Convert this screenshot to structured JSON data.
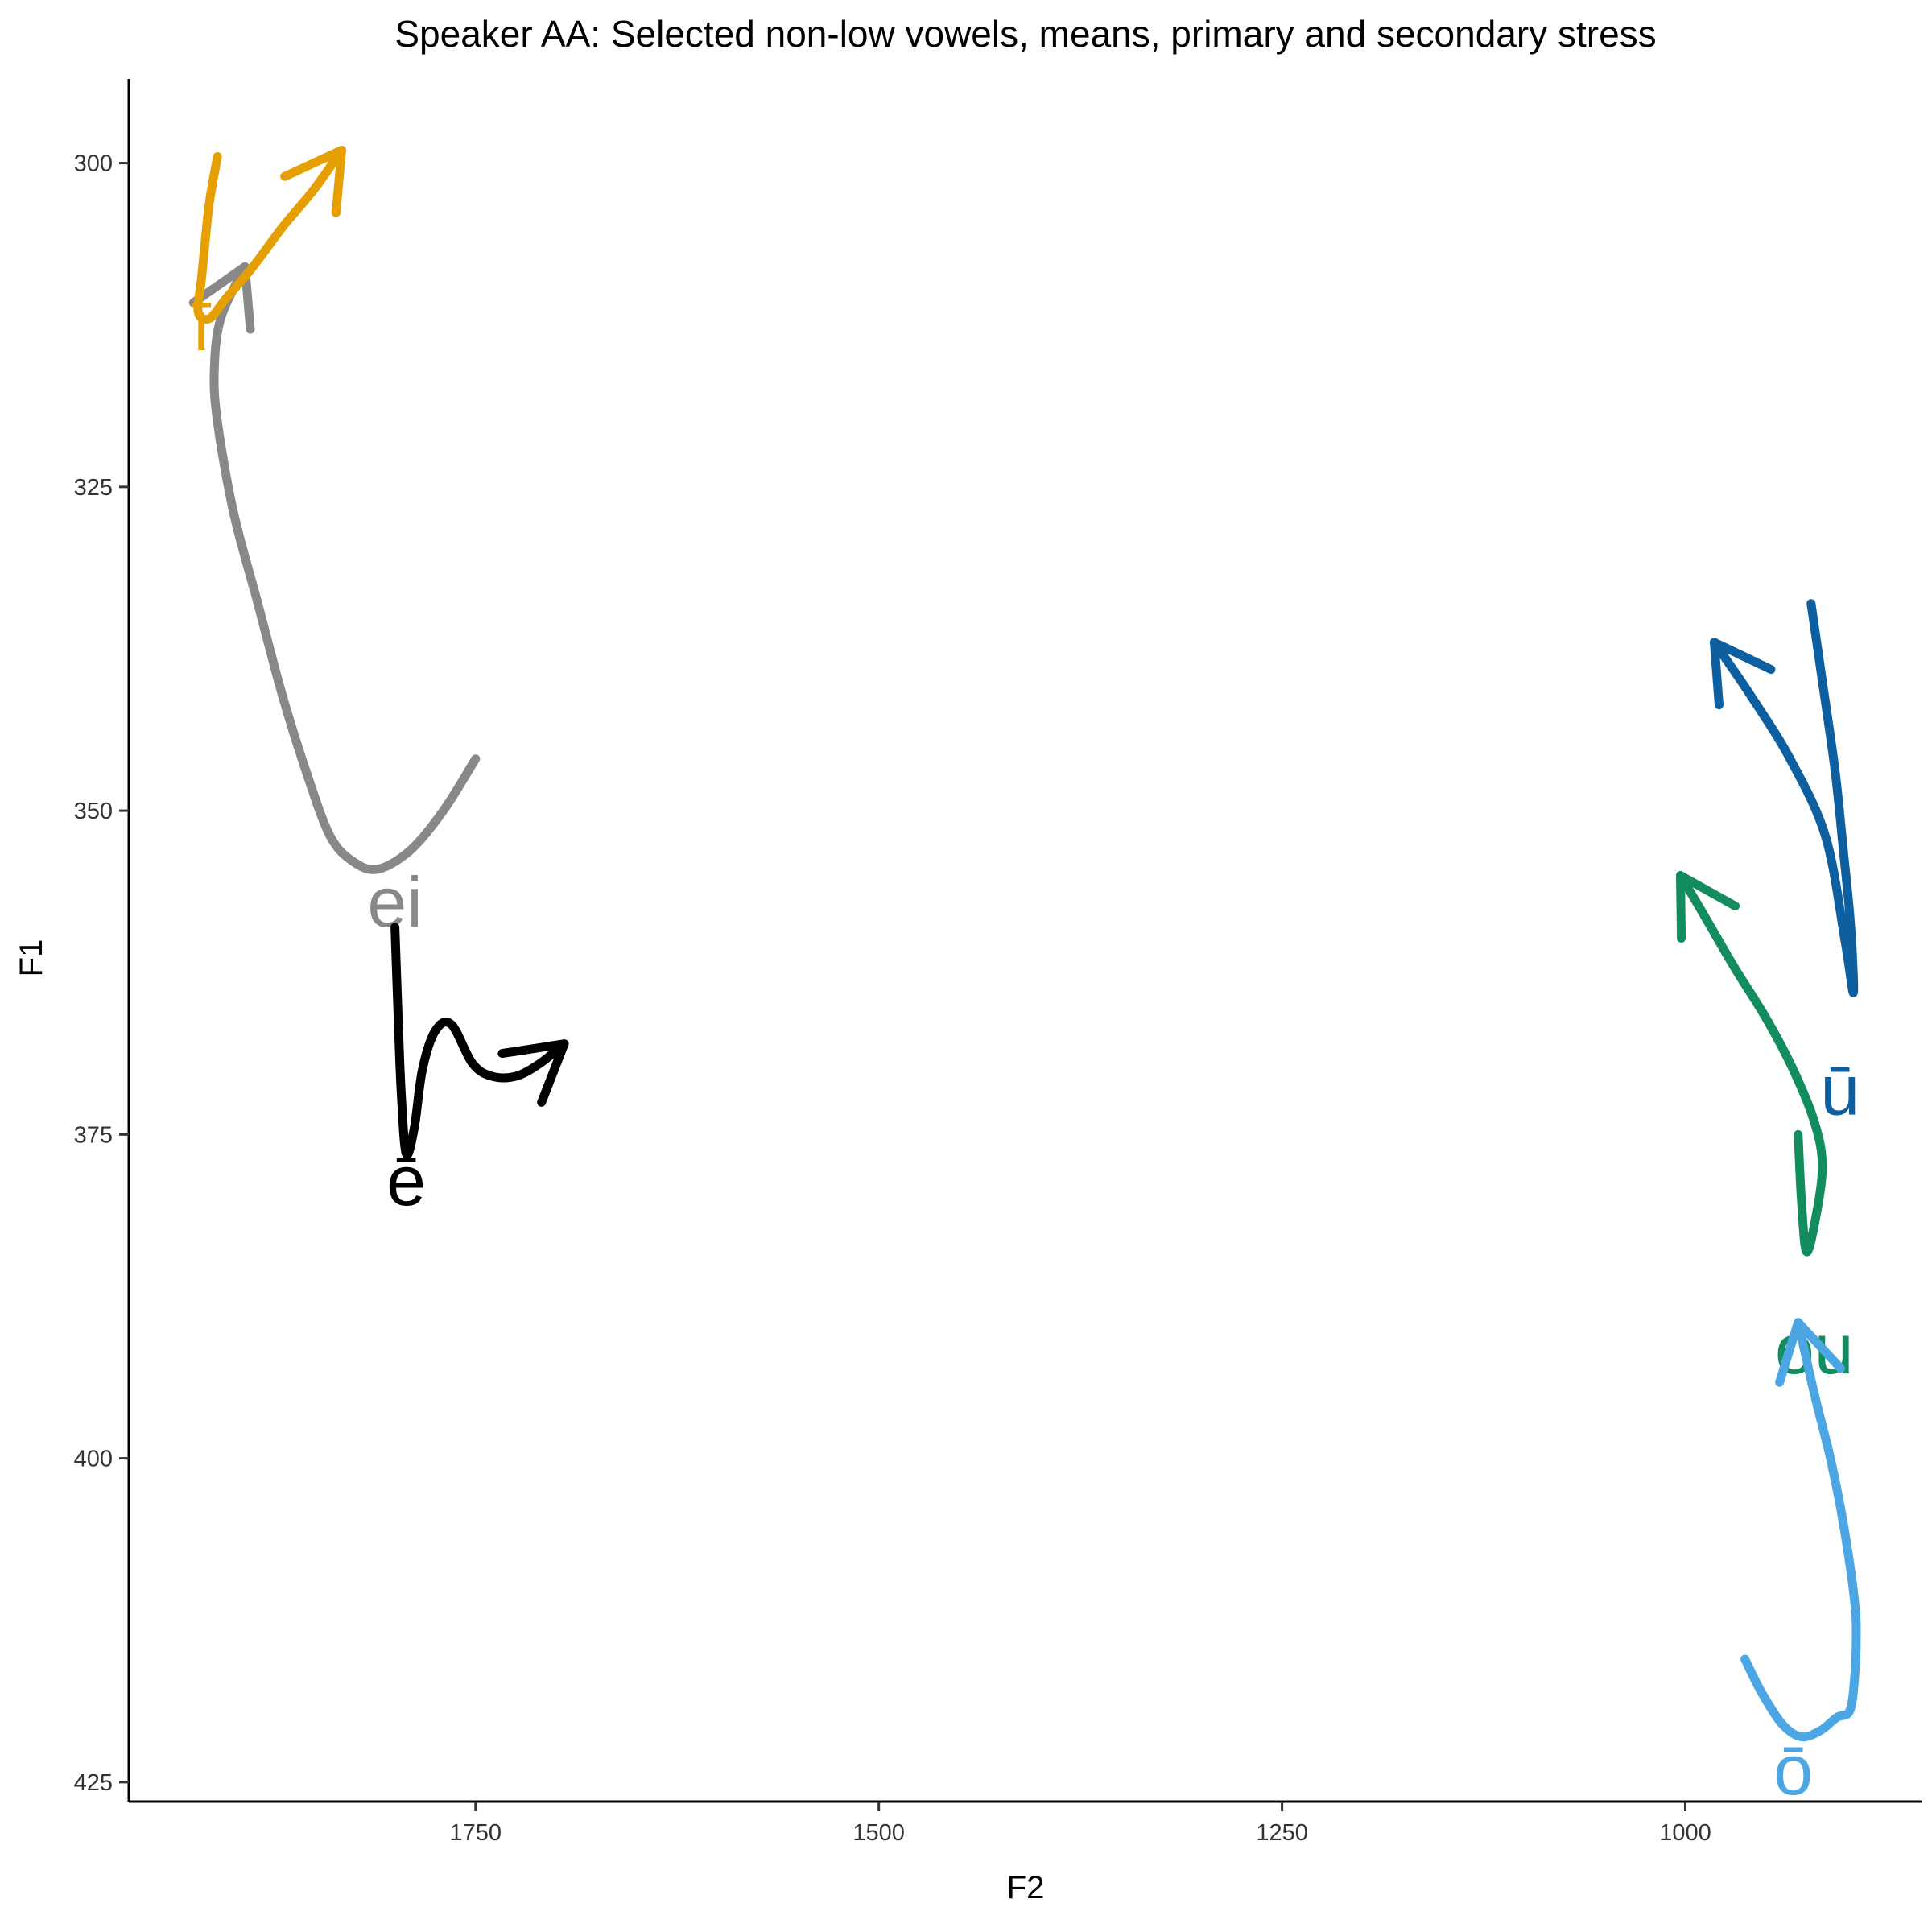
{
  "chart_data": {
    "type": "line",
    "title": "Speaker AA: Selected non-low vowels, means, primary and secondary stress",
    "xlabel": "F2",
    "ylabel": "F1",
    "x_reversed": true,
    "y_reversed": true,
    "xlim": [
      1965,
      853
    ],
    "ylim": [
      293.5,
      426.5
    ],
    "x_ticks": [
      1750,
      1500,
      1250,
      1000
    ],
    "y_ticks": [
      300,
      325,
      350,
      375,
      400,
      425
    ],
    "grid": false,
    "legend": "none",
    "series": [
      {
        "name": "ei",
        "color": "#888888",
        "label_at": [
          1800,
          357.5
        ],
        "points": [
          [
            1750,
            346
          ],
          [
            1770,
            350
          ],
          [
            1790,
            353
          ],
          [
            1810,
            354.5
          ],
          [
            1825,
            354
          ],
          [
            1840,
            352
          ],
          [
            1855,
            347
          ],
          [
            1870,
            341
          ],
          [
            1885,
            334
          ],
          [
            1900,
            327
          ],
          [
            1910,
            320
          ],
          [
            1912,
            316
          ],
          [
            1908,
            312
          ],
          [
            1893,
            308
          ]
        ]
      },
      {
        "name": "ī",
        "color": "#E69F00",
        "label_at": [
          1920,
          313
        ],
        "points": [
          [
            1910,
            299.5
          ],
          [
            1915,
            303
          ],
          [
            1918,
            306.5
          ],
          [
            1920,
            309
          ],
          [
            1922,
            311.5
          ],
          [
            1915,
            312
          ],
          [
            1905,
            310.5
          ],
          [
            1888,
            308
          ],
          [
            1870,
            305
          ],
          [
            1850,
            302
          ],
          [
            1833,
            299
          ]
        ]
      },
      {
        "name": "ē",
        "color": "#000000",
        "label_at": [
          1793,
          379
        ],
        "points": [
          [
            1800,
            359
          ],
          [
            1798,
            366
          ],
          [
            1796,
            372
          ],
          [
            1793,
            376.5
          ],
          [
            1788,
            374.5
          ],
          [
            1783,
            370
          ],
          [
            1775,
            367
          ],
          [
            1765,
            366.5
          ],
          [
            1752,
            369.5
          ],
          [
            1740,
            370.5
          ],
          [
            1725,
            370.5
          ],
          [
            1710,
            369.5
          ],
          [
            1695,
            368
          ]
        ]
      },
      {
        "name": "ū",
        "color": "#0E5FA0",
        "label_at": [
          904,
          372
        ],
        "points": [
          [
            922,
            334
          ],
          [
            915,
            340
          ],
          [
            907,
            347
          ],
          [
            902,
            353
          ],
          [
            898,
            358
          ],
          [
            896,
            362
          ],
          [
            896,
            364
          ],
          [
            901,
            360
          ],
          [
            913,
            352
          ],
          [
            935,
            346
          ],
          [
            960,
            341
          ],
          [
            982,
            337
          ]
        ]
      },
      {
        "name": "ou",
        "color": "#138D5E",
        "label_at": [
          920,
          392
        ],
        "points": [
          [
            930,
            375
          ],
          [
            928,
            380
          ],
          [
            925,
            384
          ],
          [
            920,
            382
          ],
          [
            915,
            377.5
          ],
          [
            920,
            374
          ],
          [
            933,
            370
          ],
          [
            950,
            366
          ],
          [
            970,
            362
          ],
          [
            991,
            357.5
          ],
          [
            1003,
            355
          ]
        ]
      },
      {
        "name": "ō",
        "color": "#4BA6E3",
        "label_at": [
          933,
          424.5
        ],
        "points": [
          [
            963,
            415.5
          ],
          [
            953,
            418
          ],
          [
            940,
            420.5
          ],
          [
            928,
            421.5
          ],
          [
            916,
            421
          ],
          [
            906,
            420
          ],
          [
            898,
            419.5
          ],
          [
            895,
            417
          ],
          [
            894,
            414
          ],
          [
            895,
            411
          ],
          [
            902,
            405
          ],
          [
            910,
            400
          ],
          [
            920,
            395
          ],
          [
            930,
            389.5
          ]
        ]
      }
    ]
  }
}
